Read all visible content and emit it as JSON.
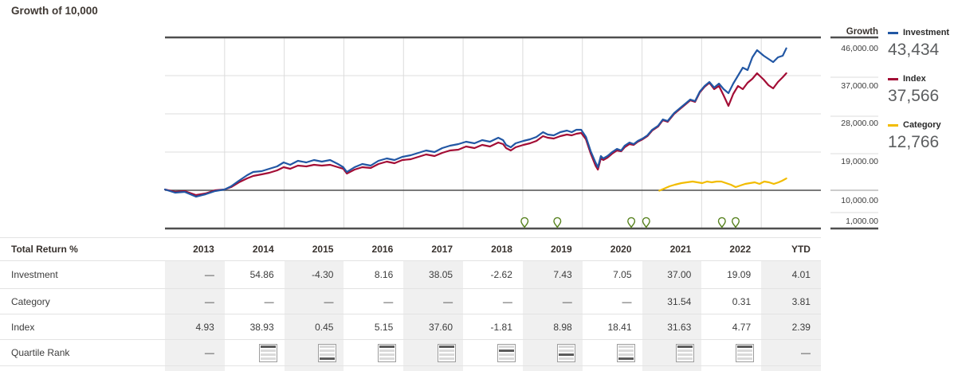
{
  "title": "Growth of 10,000",
  "axis": {
    "header": "Growth",
    "tick_labels": [
      "46,000.00",
      "37,000.00",
      "28,000.00",
      "19,000.00",
      "10,000.00",
      "1,000.00"
    ]
  },
  "legend": [
    {
      "id": "investment",
      "label": "Investment",
      "value": "43,434",
      "color": "#2257a4"
    },
    {
      "id": "index",
      "label": "Index",
      "value": "37,566",
      "color": "#a30d35"
    },
    {
      "id": "category",
      "label": "Category",
      "value": "12,766",
      "color": "#f2bc00"
    }
  ],
  "colors": {
    "investment": "#2257a4",
    "index": "#a30d35",
    "category": "#f2bc00",
    "grid_dark": "#4f4f4f",
    "grid_light": "#dcdcdc",
    "pin_green": "#55801c",
    "col_shade": "#f0f0f0",
    "text_dark": "#3c3c3c"
  },
  "chart_data": {
    "type": "line",
    "title": "Growth of 10,000",
    "ylabel": "Growth",
    "ylim": [
      1000,
      46000
    ],
    "yticks": [
      46000,
      37000,
      28000,
      19000,
      10000,
      1000
    ],
    "xlim": [
      2013,
      2024
    ],
    "x_gridline_years": [
      2014,
      2015,
      2016,
      2017,
      2018,
      2019,
      2020,
      2021,
      2022,
      2023
    ],
    "grid": true,
    "legend_position": "right",
    "event_marker_years": [
      2019.03,
      2019.58,
      2020.82,
      2021.07,
      2022.34,
      2022.57
    ],
    "series": [
      {
        "name": "Investment",
        "final_value": 43434,
        "points": [
          [
            2013,
            10190
          ],
          [
            2013.17,
            9440
          ],
          [
            2013.33,
            9625
          ],
          [
            2013.52,
            8500
          ],
          [
            2013.68,
            9060
          ],
          [
            2013.84,
            9810
          ],
          [
            2014,
            10190
          ],
          [
            2014.11,
            10940
          ],
          [
            2014.24,
            12250
          ],
          [
            2014.38,
            13560
          ],
          [
            2014.48,
            14310
          ],
          [
            2014.62,
            14500
          ],
          [
            2014.75,
            15060
          ],
          [
            2014.88,
            15625
          ],
          [
            2014.99,
            16560
          ],
          [
            2015.1,
            16000
          ],
          [
            2015.23,
            16940
          ],
          [
            2015.37,
            16560
          ],
          [
            2015.5,
            17125
          ],
          [
            2015.63,
            16750
          ],
          [
            2015.77,
            17125
          ],
          [
            2015.9,
            16190
          ],
          [
            2015.99,
            15440
          ],
          [
            2016.05,
            14310
          ],
          [
            2016.18,
            15440
          ],
          [
            2016.31,
            16190
          ],
          [
            2016.45,
            15810
          ],
          [
            2016.58,
            16940
          ],
          [
            2016.72,
            17500
          ],
          [
            2016.85,
            17125
          ],
          [
            2016.98,
            17875
          ],
          [
            2017.12,
            18250
          ],
          [
            2017.25,
            18810
          ],
          [
            2017.38,
            19375
          ],
          [
            2017.52,
            19000
          ],
          [
            2017.65,
            19940
          ],
          [
            2017.78,
            20500
          ],
          [
            2017.92,
            20875
          ],
          [
            2018.05,
            21440
          ],
          [
            2018.19,
            21065
          ],
          [
            2018.32,
            21810
          ],
          [
            2018.45,
            21440
          ],
          [
            2018.59,
            22375
          ],
          [
            2018.67,
            21810
          ],
          [
            2018.72,
            20690
          ],
          [
            2018.8,
            20125
          ],
          [
            2018.88,
            21060
          ],
          [
            2019.01,
            21625
          ],
          [
            2019.12,
            22000
          ],
          [
            2019.23,
            22560
          ],
          [
            2019.34,
            23690
          ],
          [
            2019.42,
            23125
          ],
          [
            2019.52,
            22940
          ],
          [
            2019.63,
            23690
          ],
          [
            2019.74,
            24060
          ],
          [
            2019.82,
            23690
          ],
          [
            2019.9,
            24250
          ],
          [
            2019.98,
            24250
          ],
          [
            2020.06,
            22560
          ],
          [
            2020.14,
            19190
          ],
          [
            2020.22,
            16560
          ],
          [
            2020.26,
            15440
          ],
          [
            2020.31,
            18060
          ],
          [
            2020.35,
            17500
          ],
          [
            2020.42,
            18060
          ],
          [
            2020.5,
            19000
          ],
          [
            2020.58,
            19750
          ],
          [
            2020.65,
            19375
          ],
          [
            2020.71,
            20500
          ],
          [
            2020.79,
            21250
          ],
          [
            2020.86,
            20875
          ],
          [
            2020.93,
            21625
          ],
          [
            2021.01,
            22190
          ],
          [
            2021.09,
            22940
          ],
          [
            2021.17,
            24250
          ],
          [
            2021.27,
            25190
          ],
          [
            2021.35,
            26690
          ],
          [
            2021.43,
            26310
          ],
          [
            2021.54,
            28190
          ],
          [
            2021.65,
            29500
          ],
          [
            2021.73,
            30440
          ],
          [
            2021.81,
            31375
          ],
          [
            2021.89,
            31000
          ],
          [
            2021.97,
            33250
          ],
          [
            2022.05,
            34560
          ],
          [
            2022.13,
            35500
          ],
          [
            2022.21,
            34190
          ],
          [
            2022.29,
            35125
          ],
          [
            2022.37,
            33810
          ],
          [
            2022.45,
            32875
          ],
          [
            2022.53,
            35125
          ],
          [
            2022.61,
            37000
          ],
          [
            2022.69,
            38875
          ],
          [
            2022.77,
            38310
          ],
          [
            2022.85,
            41310
          ],
          [
            2022.93,
            43000
          ],
          [
            2023.04,
            41690
          ],
          [
            2023.12,
            40940
          ],
          [
            2023.2,
            40190
          ],
          [
            2023.28,
            41310
          ],
          [
            2023.36,
            41690
          ],
          [
            2023.42,
            43434
          ]
        ]
      },
      {
        "name": "Index",
        "final_value": 37566,
        "points": [
          [
            2013,
            10190
          ],
          [
            2013.17,
            9625
          ],
          [
            2013.33,
            9810
          ],
          [
            2013.52,
            8875
          ],
          [
            2013.68,
            9250
          ],
          [
            2013.84,
            10000
          ],
          [
            2014,
            10190
          ],
          [
            2014.11,
            10750
          ],
          [
            2014.24,
            11875
          ],
          [
            2014.38,
            12810
          ],
          [
            2014.48,
            13375
          ],
          [
            2014.62,
            13750
          ],
          [
            2014.75,
            14125
          ],
          [
            2014.88,
            14690
          ],
          [
            2014.99,
            15440
          ],
          [
            2015.1,
            15060
          ],
          [
            2015.23,
            15810
          ],
          [
            2015.37,
            15625
          ],
          [
            2015.5,
            16000
          ],
          [
            2015.63,
            15810
          ],
          [
            2015.77,
            16000
          ],
          [
            2015.9,
            15440
          ],
          [
            2015.99,
            15060
          ],
          [
            2016.05,
            13940
          ],
          [
            2016.18,
            14875
          ],
          [
            2016.31,
            15440
          ],
          [
            2016.45,
            15250
          ],
          [
            2016.58,
            16190
          ],
          [
            2016.72,
            16750
          ],
          [
            2016.85,
            16375
          ],
          [
            2016.98,
            17125
          ],
          [
            2017.12,
            17310
          ],
          [
            2017.25,
            17875
          ],
          [
            2017.38,
            18440
          ],
          [
            2017.52,
            18060
          ],
          [
            2017.65,
            18810
          ],
          [
            2017.78,
            19375
          ],
          [
            2017.92,
            19560
          ],
          [
            2018.05,
            20310
          ],
          [
            2018.19,
            19940
          ],
          [
            2018.32,
            20690
          ],
          [
            2018.45,
            20310
          ],
          [
            2018.59,
            21250
          ],
          [
            2018.67,
            20875
          ],
          [
            2018.72,
            19940
          ],
          [
            2018.8,
            19375
          ],
          [
            2018.88,
            20125
          ],
          [
            2019.01,
            20690
          ],
          [
            2019.12,
            21060
          ],
          [
            2019.23,
            21625
          ],
          [
            2019.34,
            22750
          ],
          [
            2019.42,
            22375
          ],
          [
            2019.52,
            22190
          ],
          [
            2019.63,
            22750
          ],
          [
            2019.74,
            23125
          ],
          [
            2019.82,
            22940
          ],
          [
            2019.9,
            23310
          ],
          [
            2019.98,
            23500
          ],
          [
            2020.06,
            22000
          ],
          [
            2020.14,
            18625
          ],
          [
            2020.22,
            15810
          ],
          [
            2020.26,
            14875
          ],
          [
            2020.31,
            17500
          ],
          [
            2020.35,
            17125
          ],
          [
            2020.42,
            17690
          ],
          [
            2020.5,
            18625
          ],
          [
            2020.58,
            19375
          ],
          [
            2020.65,
            19190
          ],
          [
            2020.71,
            20125
          ],
          [
            2020.79,
            20875
          ],
          [
            2020.86,
            20690
          ],
          [
            2020.93,
            21440
          ],
          [
            2021.01,
            22000
          ],
          [
            2021.09,
            22750
          ],
          [
            2021.17,
            24060
          ],
          [
            2021.27,
            25000
          ],
          [
            2021.35,
            26500
          ],
          [
            2021.43,
            26125
          ],
          [
            2021.54,
            28000
          ],
          [
            2021.65,
            29310
          ],
          [
            2021.73,
            30250
          ],
          [
            2021.81,
            31190
          ],
          [
            2021.89,
            30810
          ],
          [
            2021.97,
            33060
          ],
          [
            2022.05,
            34375
          ],
          [
            2022.13,
            35310
          ],
          [
            2022.21,
            33810
          ],
          [
            2022.29,
            34560
          ],
          [
            2022.37,
            32310
          ],
          [
            2022.45,
            29875
          ],
          [
            2022.53,
            32690
          ],
          [
            2022.61,
            34560
          ],
          [
            2022.69,
            33810
          ],
          [
            2022.77,
            35310
          ],
          [
            2022.85,
            36250
          ],
          [
            2022.93,
            37560
          ],
          [
            2023.04,
            36060
          ],
          [
            2023.12,
            34750
          ],
          [
            2023.2,
            34000
          ],
          [
            2023.28,
            35500
          ],
          [
            2023.36,
            36625
          ],
          [
            2023.42,
            37566
          ]
        ]
      },
      {
        "name": "Category",
        "final_value": 12766,
        "points": [
          [
            2021.29,
            9900
          ],
          [
            2021.37,
            10375
          ],
          [
            2021.46,
            10940
          ],
          [
            2021.55,
            11310
          ],
          [
            2021.66,
            11690
          ],
          [
            2021.75,
            11875
          ],
          [
            2021.85,
            12060
          ],
          [
            2021.93,
            11875
          ],
          [
            2022.01,
            11690
          ],
          [
            2022.09,
            12060
          ],
          [
            2022.17,
            11875
          ],
          [
            2022.25,
            12060
          ],
          [
            2022.33,
            12060
          ],
          [
            2022.41,
            11690
          ],
          [
            2022.49,
            11310
          ],
          [
            2022.57,
            10750
          ],
          [
            2022.65,
            11125
          ],
          [
            2022.73,
            11500
          ],
          [
            2022.81,
            11690
          ],
          [
            2022.89,
            11875
          ],
          [
            2022.97,
            11500
          ],
          [
            2023.05,
            12060
          ],
          [
            2023.13,
            11875
          ],
          [
            2023.21,
            11500
          ],
          [
            2023.29,
            11875
          ],
          [
            2023.35,
            12250
          ],
          [
            2023.42,
            12766
          ]
        ]
      }
    ]
  },
  "table": {
    "header_label": "Total Return %",
    "columns": [
      "2013",
      "2014",
      "2015",
      "2016",
      "2017",
      "2018",
      "2019",
      "2020",
      "2021",
      "2022",
      "YTD"
    ],
    "shaded_columns": [
      0,
      2,
      4,
      6,
      8,
      10
    ],
    "rows": [
      {
        "label": "Investment",
        "values": [
          "—",
          "54.86",
          "-4.30",
          "8.16",
          "38.05",
          "-2.62",
          "7.43",
          "7.05",
          "37.00",
          "19.09",
          "4.01"
        ]
      },
      {
        "label": "Category",
        "values": [
          "—",
          "—",
          "—",
          "—",
          "—",
          "—",
          "—",
          "—",
          "31.54",
          "0.31",
          "3.81"
        ]
      },
      {
        "label": "Index",
        "values": [
          "4.93",
          "38.93",
          "0.45",
          "5.15",
          "37.60",
          "-1.81",
          "8.98",
          "18.41",
          "31.63",
          "4.77",
          "2.39"
        ]
      }
    ],
    "quartile_row": {
      "label": "Quartile Rank",
      "values": [
        "—",
        "Q1",
        "Q4",
        "Q1",
        "Q1",
        "Q2",
        "Q3",
        "Q4",
        "Q1",
        "Q1",
        "—"
      ]
    }
  }
}
